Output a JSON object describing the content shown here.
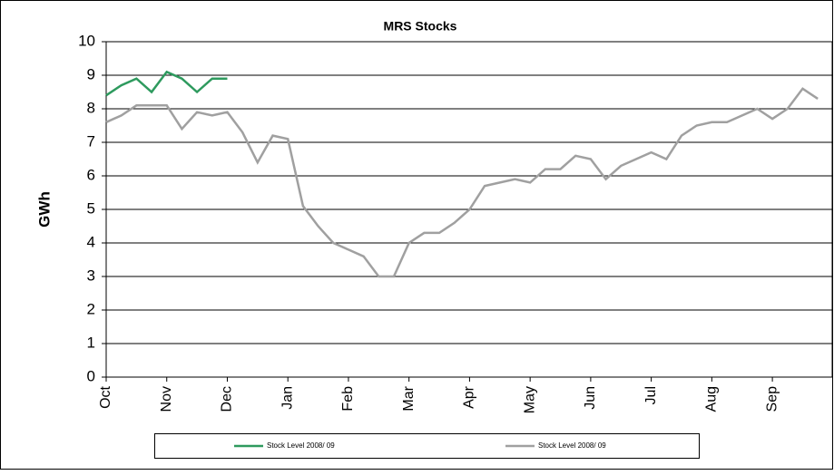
{
  "chart_data": {
    "type": "line",
    "title": "MRS Stocks",
    "y_label": "GWh",
    "categories": [
      "Oct",
      null,
      null,
      null,
      "Nov",
      null,
      null,
      null,
      "Dec",
      null,
      null,
      null,
      "Jan",
      null,
      null,
      null,
      "Feb",
      null,
      null,
      null,
      "Mar",
      null,
      null,
      null,
      "Apr",
      null,
      null,
      null,
      "May",
      null,
      null,
      null,
      "Jun",
      null,
      null,
      null,
      "Jul",
      null,
      null,
      null,
      "Aug",
      null,
      null,
      null,
      "Sep",
      null,
      null,
      null
    ],
    "series": [
      {
        "name": "Stock Level 2008/ 09",
        "color": "#2e9a5e",
        "values": [
          8.4,
          8.7,
          8.9,
          8.5,
          9.1,
          8.9,
          8.5,
          8.9,
          8.9,
          null,
          null,
          null,
          null,
          null,
          null,
          null,
          null,
          null,
          null,
          null,
          null,
          null,
          null,
          null,
          null,
          null,
          null,
          null,
          null,
          null,
          null,
          null,
          null,
          null,
          null,
          null,
          null,
          null,
          null,
          null,
          null,
          null,
          null,
          null,
          null,
          null,
          null,
          null
        ]
      },
      {
        "name": "Stock Level 2008/ 09",
        "color": "#a0a0a0",
        "values": [
          7.6,
          7.8,
          8.1,
          8.1,
          8.1,
          7.4,
          7.9,
          7.8,
          7.9,
          7.3,
          6.4,
          7.2,
          7.1,
          5.1,
          4.5,
          4.0,
          3.8,
          3.6,
          3.0,
          3.0,
          4.0,
          4.3,
          4.3,
          4.6,
          5.0,
          5.7,
          5.8,
          5.9,
          5.8,
          6.2,
          6.2,
          6.6,
          6.5,
          5.9,
          6.3,
          6.5,
          6.7,
          6.5,
          7.2,
          7.5,
          7.6,
          7.6,
          7.8,
          8.0,
          7.7,
          8.0,
          8.6,
          8.3
        ]
      }
    ],
    "ylim": [
      0,
      10
    ],
    "yticks": [
      0,
      1,
      2,
      3,
      4,
      5,
      6,
      7,
      8,
      9,
      10
    ],
    "grid": true
  }
}
